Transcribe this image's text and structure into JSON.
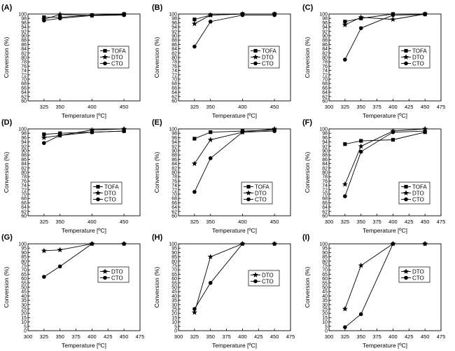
{
  "chart_data": [
    {
      "panel": "(A)",
      "type": "line",
      "xlabel": "Temperature [ºC]",
      "ylabel": "Conversion (%)",
      "xlim": [
        300,
        475
      ],
      "xticks": [
        325,
        350,
        400,
        450
      ],
      "ylim": [
        60,
        100
      ],
      "yticks": [
        60,
        62,
        64,
        66,
        68,
        70,
        72,
        74,
        76,
        78,
        80,
        82,
        84,
        86,
        88,
        90,
        92,
        94,
        96,
        98,
        100
      ],
      "x": [
        325,
        350,
        400,
        450
      ],
      "series": [
        {
          "name": "TOFA",
          "marker": "square",
          "values": [
            98.5,
            98.5,
            99.5,
            100
          ]
        },
        {
          "name": "DTO",
          "marker": "star",
          "values": [
            97.5,
            99.8,
            99.3,
            99.8
          ]
        },
        {
          "name": "CTO",
          "marker": "circle",
          "values": [
            97,
            98,
            99.3,
            99.5
          ]
        }
      ]
    },
    {
      "panel": "(B)",
      "type": "line",
      "xlabel": "Temperature [ºC]",
      "ylabel": "Conversion (%)",
      "xlim": [
        300,
        475
      ],
      "xticks": [
        325,
        350,
        400,
        450
      ],
      "ylim": [
        60,
        100
      ],
      "yticks": [
        60,
        62,
        64,
        66,
        68,
        70,
        72,
        74,
        76,
        78,
        80,
        82,
        84,
        86,
        88,
        90,
        92,
        94,
        96,
        98,
        100
      ],
      "x": [
        325,
        350,
        400,
        450
      ],
      "series": [
        {
          "name": "TOFA",
          "marker": "square",
          "values": [
            97.5,
            99.5,
            100,
            100
          ]
        },
        {
          "name": "DTO",
          "marker": "star",
          "values": [
            95.5,
            99.5,
            100,
            100
          ]
        },
        {
          "name": "CTO",
          "marker": "circle",
          "values": [
            85,
            96.5,
            99.5,
            99.5
          ]
        }
      ]
    },
    {
      "panel": "(C)",
      "type": "line",
      "xlabel": "Temperature [ºC]",
      "ylabel": "Conversion (%)",
      "xlim": [
        300,
        475
      ],
      "xticks": [
        300,
        325,
        350,
        375,
        400,
        425,
        450,
        475
      ],
      "ylim": [
        60,
        100
      ],
      "yticks": [
        60,
        62,
        64,
        66,
        68,
        70,
        72,
        74,
        76,
        78,
        80,
        82,
        84,
        86,
        88,
        90,
        92,
        94,
        96,
        98,
        100
      ],
      "x": [
        325,
        350,
        400,
        450
      ],
      "series": [
        {
          "name": "TOFA",
          "marker": "square",
          "values": [
            96.5,
            98,
            100,
            100
          ]
        },
        {
          "name": "DTO",
          "marker": "star",
          "values": [
            95,
            98.5,
            97.5,
            100
          ]
        },
        {
          "name": "CTO",
          "marker": "circle",
          "values": [
            79,
            93.5,
            99.5,
            99.8
          ]
        }
      ]
    },
    {
      "panel": "(D)",
      "type": "line",
      "xlabel": "Temperature [ºC]",
      "ylabel": "Conversion (%)",
      "xlim": [
        300,
        475
      ],
      "xticks": [
        325,
        350,
        400,
        450
      ],
      "ylim": [
        60,
        100
      ],
      "yticks": [
        60,
        62,
        64,
        66,
        68,
        70,
        72,
        74,
        76,
        78,
        80,
        82,
        84,
        86,
        88,
        90,
        92,
        94,
        96,
        98,
        100
      ],
      "x": [
        325,
        350,
        400,
        450
      ],
      "series": [
        {
          "name": "TOFA",
          "marker": "square",
          "values": [
            97.5,
            98,
            98.5,
            99
          ]
        },
        {
          "name": "DTO",
          "marker": "star",
          "values": [
            96,
            97,
            99.5,
            100
          ]
        },
        {
          "name": "CTO",
          "marker": "circle",
          "values": [
            93.5,
            97,
            98.5,
            99
          ]
        }
      ]
    },
    {
      "panel": "(E)",
      "type": "line",
      "xlabel": "Temperature [ºC]",
      "ylabel": "Conversion (%)",
      "xlim": [
        300,
        475
      ],
      "xticks": [
        325,
        350,
        400,
        450
      ],
      "ylim": [
        60,
        100
      ],
      "yticks": [
        60,
        62,
        64,
        66,
        68,
        70,
        72,
        74,
        76,
        78,
        80,
        82,
        84,
        86,
        88,
        90,
        92,
        94,
        96,
        98,
        100
      ],
      "x": [
        325,
        350,
        400,
        450
      ],
      "series": [
        {
          "name": "TOFA",
          "marker": "square",
          "values": [
            95.5,
            98.5,
            99,
            99.5
          ]
        },
        {
          "name": "DTO",
          "marker": "star",
          "values": [
            84,
            95,
            98.5,
            100
          ]
        },
        {
          "name": "CTO",
          "marker": "circle",
          "values": [
            71,
            86.5,
            98.5,
            99
          ]
        }
      ]
    },
    {
      "panel": "(F)",
      "type": "line",
      "xlabel": "Temperature [ºC]",
      "ylabel": "Conversion (%)",
      "xlim": [
        300,
        475
      ],
      "xticks": [
        300,
        325,
        350,
        375,
        400,
        425,
        450,
        475
      ],
      "ylim": [
        60,
        100
      ],
      "yticks": [
        60,
        62,
        64,
        66,
        68,
        70,
        72,
        74,
        76,
        78,
        80,
        82,
        84,
        86,
        88,
        90,
        92,
        94,
        96,
        98,
        100
      ],
      "x": [
        325,
        350,
        400,
        450
      ],
      "series": [
        {
          "name": "TOFA",
          "marker": "square",
          "values": [
            93,
            94.5,
            95,
            98.5
          ]
        },
        {
          "name": "DTO",
          "marker": "star",
          "values": [
            74.5,
            92,
            99,
            100
          ]
        },
        {
          "name": "CTO",
          "marker": "circle",
          "values": [
            69,
            89.5,
            98.5,
            99
          ]
        }
      ]
    },
    {
      "panel": "(G)",
      "type": "line",
      "xlabel": "Temperature [ºC]",
      "ylabel": "Conversion (%)",
      "xlim": [
        300,
        475
      ],
      "xticks": [
        300,
        325,
        350,
        375,
        400,
        425,
        450,
        475
      ],
      "ylim": [
        0,
        100
      ],
      "yticks": [
        0,
        5,
        10,
        15,
        20,
        25,
        30,
        35,
        40,
        45,
        50,
        55,
        60,
        65,
        70,
        75,
        80,
        85,
        90,
        95,
        100
      ],
      "x": [
        325,
        350,
        400,
        450
      ],
      "series": [
        {
          "name": "DTO",
          "marker": "star",
          "values": [
            92,
            93,
            100,
            100
          ]
        },
        {
          "name": "CTO",
          "marker": "circle",
          "values": [
            62,
            74,
            100,
            100
          ]
        }
      ]
    },
    {
      "panel": "(H)",
      "type": "line",
      "xlabel": "Temperature [ºC]",
      "ylabel": "Conversion (%)",
      "xlim": [
        300,
        475
      ],
      "xticks": [
        300,
        325,
        350,
        375,
        400,
        425,
        450,
        475
      ],
      "ylim": [
        0,
        100
      ],
      "yticks": [
        0,
        5,
        10,
        15,
        20,
        25,
        30,
        35,
        40,
        45,
        50,
        55,
        60,
        65,
        70,
        75,
        80,
        85,
        90,
        95,
        100
      ],
      "x": [
        325,
        350,
        400,
        450
      ],
      "series": [
        {
          "name": "DTO",
          "marker": "star",
          "values": [
            21,
            85,
            100,
            100
          ]
        },
        {
          "name": "CTO",
          "marker": "circle",
          "values": [
            25,
            55,
            100,
            100
          ]
        }
      ]
    },
    {
      "panel": "(I)",
      "type": "line",
      "xlabel": "Temperature [ºC]",
      "ylabel": "Conversion (%)",
      "xlim": [
        300,
        475
      ],
      "xticks": [
        300,
        325,
        350,
        375,
        400,
        425,
        450,
        475
      ],
      "ylim": [
        0,
        100
      ],
      "yticks": [
        0,
        5,
        10,
        15,
        20,
        25,
        30,
        35,
        40,
        45,
        50,
        55,
        60,
        65,
        70,
        75,
        80,
        85,
        90,
        95,
        100
      ],
      "x": [
        325,
        350,
        400,
        450
      ],
      "series": [
        {
          "name": "DTO",
          "marker": "star",
          "values": [
            25,
            75,
            100,
            100
          ]
        },
        {
          "name": "CTO",
          "marker": "circle",
          "values": [
            4,
            19,
            100,
            100
          ]
        }
      ]
    }
  ]
}
